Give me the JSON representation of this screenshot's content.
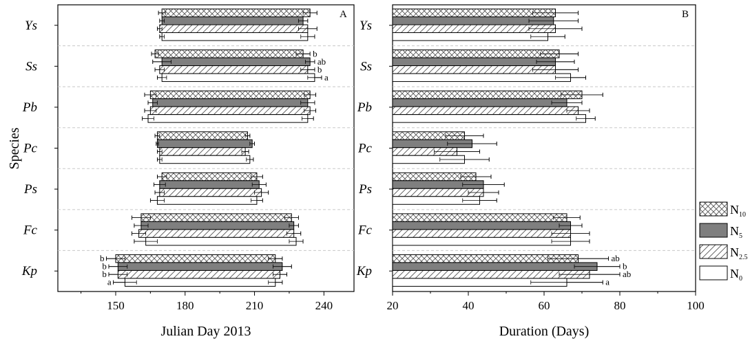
{
  "chart_data": [
    {
      "panel": "A",
      "type": "floating-bar",
      "xlabel": "Julian Day 2013",
      "ylabel": "Species",
      "xlim": [
        125,
        253
      ],
      "xticks": [
        150,
        180,
        210,
        240
      ],
      "categories": [
        "Ys",
        "Ss",
        "Pb",
        "Pc",
        "Ps",
        "Fc",
        "Kp"
      ],
      "series": [
        {
          "name": "N10",
          "pattern": "crosshatch",
          "start": [
            170,
            167,
            165,
            168,
            170,
            161,
            150
          ],
          "start_err": [
            1.5,
            1.5,
            2.5,
            1,
            2,
            4,
            4
          ],
          "end": [
            234,
            231,
            234,
            207,
            211,
            226,
            219
          ],
          "end_err": [
            3,
            3,
            2.5,
            1,
            2.5,
            3,
            3
          ],
          "labels": [
            "",
            "b",
            "",
            "",
            "",
            "",
            "b"
          ]
        },
        {
          "name": "N5",
          "pattern": "solid-grey",
          "start": [
            170,
            170,
            166,
            168,
            169,
            161,
            151
          ],
          "start_err": [
            1,
            4,
            2,
            0.5,
            2.5,
            3,
            4
          ],
          "end": [
            231,
            234,
            233,
            209,
            212,
            227,
            222
          ],
          "end_err": [
            2,
            2,
            3,
            1,
            3,
            2,
            4
          ],
          "labels": [
            "",
            "ab",
            "",
            "",
            "",
            "",
            "b"
          ]
        },
        {
          "name": "N2.5",
          "pattern": "diagonal",
          "start": [
            169,
            169,
            165,
            169,
            169,
            160,
            151
          ],
          "start_err": [
            1,
            2,
            2.5,
            1,
            2,
            3,
            4
          ],
          "end": [
            233,
            233,
            234,
            206,
            213,
            227,
            221
          ],
          "end_err": [
            4,
            3,
            2.5,
            1.5,
            3,
            3,
            3
          ],
          "labels": [
            "",
            "b",
            "",
            "",
            "",
            "",
            "b"
          ]
        },
        {
          "name": "N0",
          "pattern": "open",
          "start": [
            170,
            170,
            164,
            169,
            168,
            163,
            154
          ],
          "start_err": [
            1,
            2,
            2.5,
            1,
            3,
            5,
            5
          ],
          "end": [
            233,
            236,
            233,
            208,
            211,
            228,
            219
          ],
          "end_err": [
            3,
            3,
            2.5,
            1.5,
            2.5,
            3,
            3
          ],
          "labels": [
            "",
            "a",
            "",
            "",
            "",
            "",
            "a"
          ]
        }
      ]
    },
    {
      "panel": "B",
      "type": "bar",
      "xlabel": "Duration (Days)",
      "xlim": [
        20,
        100
      ],
      "xticks": [
        20,
        40,
        60,
        80,
        100
      ],
      "categories": [
        "Ys",
        "Ss",
        "Pb",
        "Pc",
        "Ps",
        "Fc",
        "Kp"
      ],
      "series": [
        {
          "name": "N10",
          "pattern": "crosshatch",
          "values": [
            63,
            64,
            70,
            39,
            42,
            66,
            69
          ],
          "err": [
            6,
            5,
            5.5,
            5,
            4,
            3.5,
            8
          ],
          "labels": [
            "",
            "",
            "",
            "",
            "",
            "",
            "ab"
          ]
        },
        {
          "name": "N5",
          "pattern": "solid-grey",
          "values": [
            62.5,
            63,
            66,
            41,
            44,
            67,
            74
          ],
          "err": [
            6.5,
            5,
            4,
            6.5,
            5.5,
            3,
            6
          ],
          "labels": [
            "",
            "",
            "",
            "",
            "",
            "",
            "b"
          ]
        },
        {
          "name": "N2.5",
          "pattern": "diagonal",
          "values": [
            63,
            63,
            69,
            37,
            44,
            67,
            72
          ],
          "err": [
            7,
            6,
            3,
            6,
            4,
            5,
            8
          ],
          "labels": [
            "",
            "",
            "",
            "",
            "",
            "",
            "ab"
          ]
        },
        {
          "name": "N0",
          "pattern": "open",
          "values": [
            61,
            67,
            71,
            39,
            43,
            67,
            66
          ],
          "err": [
            4.5,
            4,
            2.5,
            6.5,
            4.5,
            5,
            9.5
          ],
          "labels": [
            "",
            "",
            "",
            "",
            "",
            "",
            "a"
          ]
        }
      ]
    }
  ],
  "legend": {
    "position": "right",
    "items": [
      {
        "main": "N",
        "sub": "10",
        "pattern": "crosshatch"
      },
      {
        "main": "N",
        "sub": "5",
        "pattern": "solid-grey"
      },
      {
        "main": "N",
        "sub": "2.5",
        "pattern": "diagonal"
      },
      {
        "main": "N",
        "sub": "0",
        "pattern": "open"
      }
    ]
  },
  "ylabel": "Species",
  "colors": {
    "solid": "#7f7f7f",
    "stroke": "#000000",
    "separator": "#c8c8c8"
  }
}
